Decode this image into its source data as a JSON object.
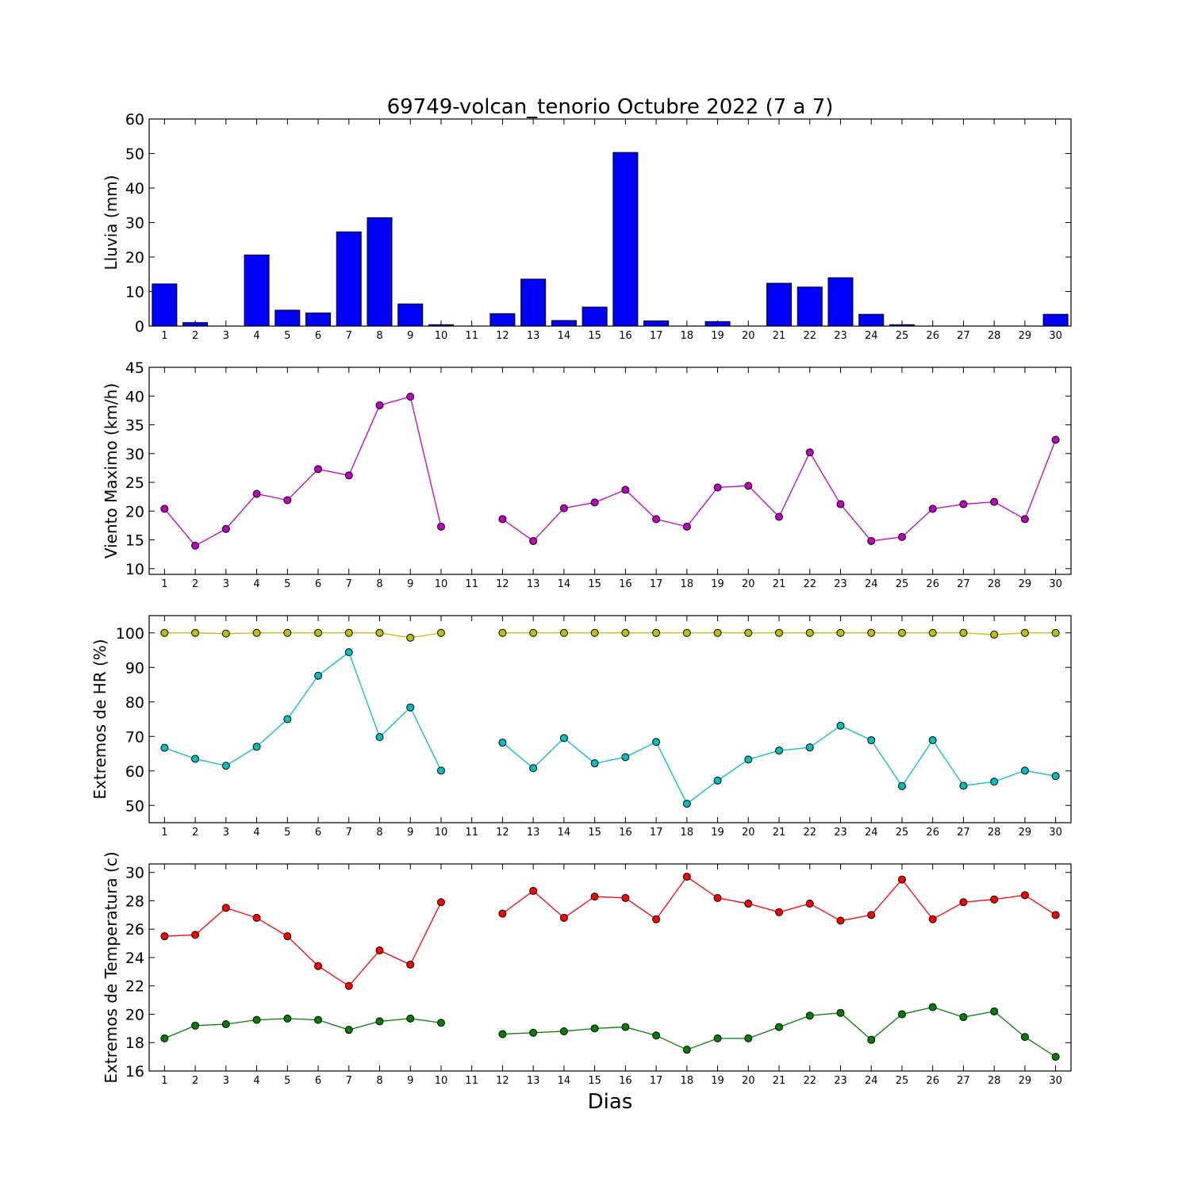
{
  "title": "69749-volcan_tenorio Octubre 2022  (7 a 7)",
  "xlabel": "Dias",
  "chart_data": [
    {
      "type": "bar",
      "ylabel": "Lluvia (mm)",
      "ylim": [
        0,
        60
      ],
      "yticks": [
        0,
        10,
        20,
        30,
        40,
        50,
        60
      ],
      "x": [
        1,
        2,
        3,
        4,
        5,
        6,
        7,
        8,
        9,
        10,
        11,
        12,
        13,
        14,
        15,
        16,
        17,
        18,
        19,
        20,
        21,
        22,
        23,
        24,
        25,
        26,
        27,
        28,
        29,
        30
      ],
      "xticks": [
        "1",
        "2",
        "3",
        "4",
        "5",
        "6",
        "7",
        "8",
        "9",
        "10",
        "11",
        "12",
        "13",
        "14",
        "15",
        "16",
        "17",
        "18",
        "19",
        "20",
        "21",
        "22",
        "23",
        "24",
        "25",
        "26",
        "27",
        "28",
        "29",
        "30"
      ],
      "series": [
        {
          "color": "#0000ff",
          "values": [
            12.2,
            1.0,
            0,
            20.6,
            4.6,
            3.8,
            27.3,
            31.4,
            6.4,
            0.4,
            null,
            3.6,
            13.6,
            1.6,
            5.5,
            50.3,
            1.5,
            0,
            1.3,
            0,
            12.4,
            11.3,
            14.0,
            3.4,
            0.4,
            0,
            0,
            0,
            0,
            3.4
          ]
        }
      ]
    },
    {
      "type": "line",
      "ylabel": "Viento Maximo (km/h)",
      "ylim": [
        9,
        45
      ],
      "yticks": [
        10,
        15,
        20,
        25,
        30,
        35,
        40,
        45
      ],
      "x": [
        1,
        2,
        3,
        4,
        5,
        6,
        7,
        8,
        9,
        10,
        11,
        12,
        13,
        14,
        15,
        16,
        17,
        18,
        19,
        20,
        21,
        22,
        23,
        24,
        25,
        26,
        27,
        28,
        29,
        30
      ],
      "xticks": [
        "1",
        "2",
        "3",
        "4",
        "5",
        "6",
        "7",
        "8",
        "9",
        "10",
        "11",
        "12",
        "13",
        "14",
        "15",
        "16",
        "17",
        "18",
        "19",
        "20",
        "21",
        "22",
        "23",
        "24",
        "25",
        "26",
        "27",
        "28",
        "29",
        "30"
      ],
      "series": [
        {
          "color": "#bf00bf",
          "values": [
            20.4,
            14.0,
            16.9,
            23.0,
            21.9,
            27.3,
            26.2,
            38.4,
            39.9,
            17.3,
            null,
            18.6,
            14.8,
            20.5,
            21.5,
            23.7,
            18.6,
            17.3,
            24.1,
            24.4,
            19.0,
            30.2,
            21.2,
            14.8,
            15.5,
            20.4,
            21.2,
            21.6,
            18.6,
            32.4
          ]
        }
      ]
    },
    {
      "type": "line",
      "ylabel": "Extremos de HR (%)",
      "ylim": [
        45,
        105
      ],
      "yticks": [
        50,
        60,
        70,
        80,
        90,
        100
      ],
      "x": [
        1,
        2,
        3,
        4,
        5,
        6,
        7,
        8,
        9,
        10,
        11,
        12,
        13,
        14,
        15,
        16,
        17,
        18,
        19,
        20,
        21,
        22,
        23,
        24,
        25,
        26,
        27,
        28,
        29,
        30
      ],
      "xticks": [
        "1",
        "2",
        "3",
        "4",
        "5",
        "6",
        "7",
        "8",
        "9",
        "10",
        "11",
        "12",
        "13",
        "14",
        "15",
        "16",
        "17",
        "18",
        "19",
        "20",
        "21",
        "22",
        "23",
        "24",
        "25",
        "26",
        "27",
        "28",
        "29",
        "30"
      ],
      "series": [
        {
          "color": "#bfbf00",
          "values": [
            100,
            100,
            99.8,
            100,
            100,
            100,
            100,
            100,
            98.6,
            100,
            null,
            100,
            100,
            100,
            100,
            100,
            100,
            100,
            100,
            100,
            100,
            100,
            100,
            100,
            100,
            100,
            100,
            99.5,
            100,
            100
          ]
        },
        {
          "color": "#00bfbf",
          "values": [
            66.7,
            63.5,
            61.5,
            67.0,
            75.0,
            87.6,
            94.4,
            69.8,
            78.4,
            60.1,
            null,
            68.2,
            60.8,
            69.5,
            62.2,
            64.0,
            68.4,
            50.5,
            57.2,
            63.3,
            65.9,
            66.8,
            73.1,
            68.9,
            55.6,
            68.9,
            55.7,
            56.9,
            60.1,
            58.5
          ]
        }
      ]
    },
    {
      "type": "line",
      "ylabel": "Extremos de Temperatura (c)",
      "ylim": [
        16,
        30.6
      ],
      "yticks": [
        16,
        18,
        20,
        22,
        24,
        26,
        28,
        30
      ],
      "x": [
        1,
        2,
        3,
        4,
        5,
        6,
        7,
        8,
        9,
        10,
        11,
        12,
        13,
        14,
        15,
        16,
        17,
        18,
        19,
        20,
        21,
        22,
        23,
        24,
        25,
        26,
        27,
        28,
        29,
        30
      ],
      "xticks": [
        "1",
        "2",
        "3",
        "4",
        "5",
        "6",
        "7",
        "8",
        "9",
        "10",
        "11",
        "12",
        "13",
        "14",
        "15",
        "16",
        "17",
        "18",
        "19",
        "20",
        "21",
        "22",
        "23",
        "24",
        "25",
        "26",
        "27",
        "28",
        "29",
        "30"
      ],
      "series": [
        {
          "color": "#ff0000",
          "values": [
            25.5,
            25.6,
            27.5,
            26.8,
            25.5,
            23.4,
            22.0,
            24.5,
            23.5,
            27.9,
            null,
            27.1,
            28.7,
            26.8,
            28.3,
            28.2,
            26.7,
            29.7,
            28.2,
            27.8,
            27.2,
            27.8,
            26.6,
            27.0,
            29.5,
            26.7,
            27.9,
            28.1,
            28.4,
            27.0
          ]
        },
        {
          "color": "#008000",
          "values": [
            18.3,
            19.2,
            19.3,
            19.6,
            19.7,
            19.6,
            18.9,
            19.5,
            19.7,
            19.4,
            null,
            18.6,
            18.7,
            18.8,
            19.0,
            19.1,
            18.5,
            17.5,
            18.3,
            18.3,
            19.1,
            19.9,
            20.1,
            18.2,
            20.0,
            20.5,
            19.8,
            20.2,
            18.4,
            17.0
          ]
        }
      ]
    }
  ]
}
